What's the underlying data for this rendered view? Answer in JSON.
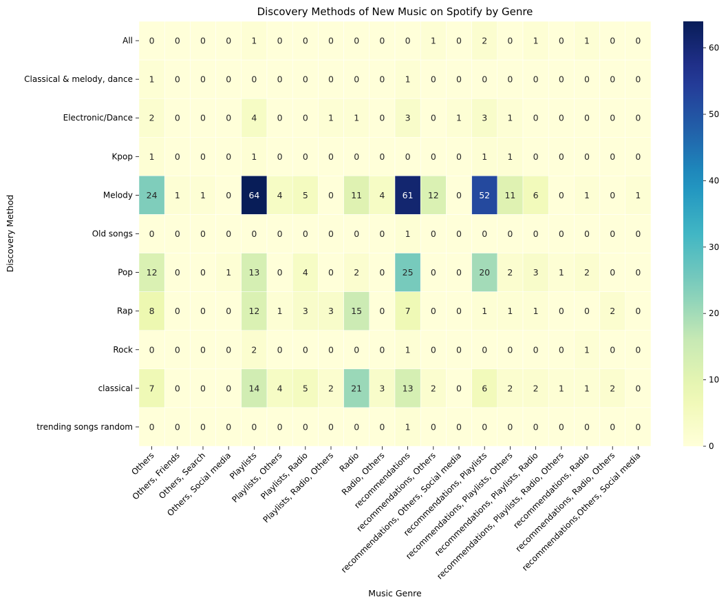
{
  "chart_data": {
    "type": "heatmap",
    "title": "Discovery Methods of New Music on Spotify by Genre",
    "xlabel": "Music Genre",
    "ylabel": "Discovery Method",
    "rows": [
      "All",
      "Classical & melody, dance",
      "Electronic/Dance",
      "Kpop",
      "Melody",
      "Old songs",
      "Pop",
      "Rap",
      "Rock",
      "classical",
      "trending songs random"
    ],
    "columns": [
      "Others",
      "Others, Friends",
      "Others, Search",
      "Others, Social media",
      "Playlists",
      "Playlists, Others",
      "Playlists, Radio",
      "Playlists, Radio, Others",
      "Radio",
      "Radio, Others",
      "recommendations",
      "recommendations, Others",
      "recommendations, Others, Social media",
      "recommendations, Playlists",
      "recommendations, Playlists, Others",
      "recommendations, Playlists, Radio",
      "recommendations, Playlists, Radio, Others",
      "recommendations, Radio",
      "recommendations, Radio, Others",
      "recommendations,Others, Social media"
    ],
    "values": [
      [
        0,
        0,
        0,
        0,
        1,
        0,
        0,
        0,
        0,
        0,
        0,
        1,
        0,
        2,
        0,
        1,
        0,
        1,
        0,
        0
      ],
      [
        1,
        0,
        0,
        0,
        0,
        0,
        0,
        0,
        0,
        0,
        1,
        0,
        0,
        0,
        0,
        0,
        0,
        0,
        0,
        0
      ],
      [
        2,
        0,
        0,
        0,
        4,
        0,
        0,
        1,
        1,
        0,
        3,
        0,
        1,
        3,
        1,
        0,
        0,
        0,
        0,
        0
      ],
      [
        1,
        0,
        0,
        0,
        1,
        0,
        0,
        0,
        0,
        0,
        0,
        0,
        0,
        1,
        1,
        0,
        0,
        0,
        0,
        0
      ],
      [
        24,
        1,
        1,
        0,
        64,
        4,
        5,
        0,
        11,
        4,
        61,
        12,
        0,
        52,
        11,
        6,
        0,
        1,
        0,
        1
      ],
      [
        0,
        0,
        0,
        0,
        0,
        0,
        0,
        0,
        0,
        0,
        1,
        0,
        0,
        0,
        0,
        0,
        0,
        0,
        0,
        0
      ],
      [
        12,
        0,
        0,
        1,
        13,
        0,
        4,
        0,
        2,
        0,
        25,
        0,
        0,
        20,
        2,
        3,
        1,
        2,
        0,
        0
      ],
      [
        8,
        0,
        0,
        0,
        12,
        1,
        3,
        3,
        15,
        0,
        7,
        0,
        0,
        1,
        1,
        1,
        0,
        0,
        2,
        0
      ],
      [
        0,
        0,
        0,
        0,
        2,
        0,
        0,
        0,
        0,
        0,
        1,
        0,
        0,
        0,
        0,
        0,
        0,
        1,
        0,
        0
      ],
      [
        7,
        0,
        0,
        0,
        14,
        4,
        5,
        2,
        21,
        3,
        13,
        2,
        0,
        6,
        2,
        2,
        1,
        1,
        2,
        0
      ],
      [
        0,
        0,
        0,
        0,
        0,
        0,
        0,
        0,
        0,
        0,
        1,
        0,
        0,
        0,
        0,
        0,
        0,
        0,
        0,
        0
      ]
    ],
    "vmin": 0,
    "vmax": 64,
    "colormap": "YlGnBu",
    "colorbar_ticks": [
      0,
      10,
      20,
      30,
      40,
      50,
      60
    ]
  }
}
